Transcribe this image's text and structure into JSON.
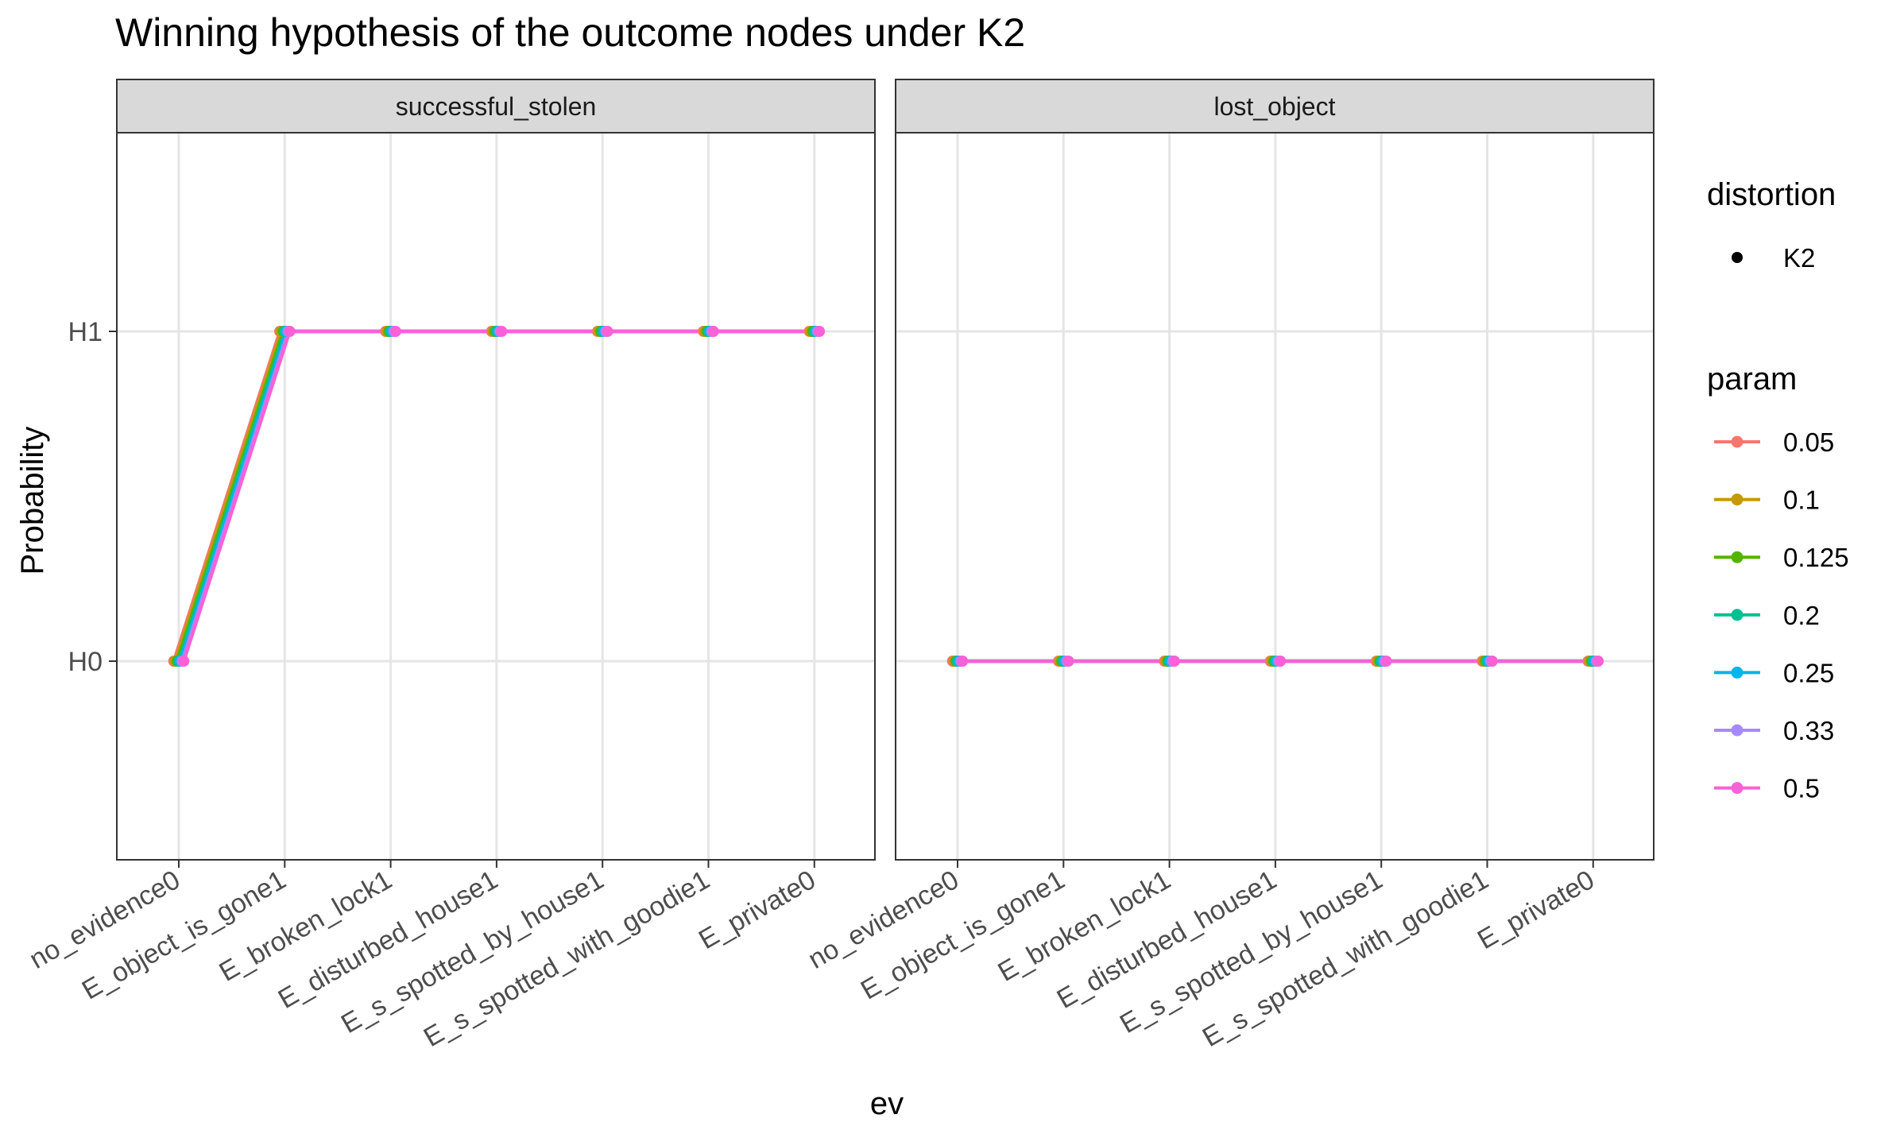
{
  "chart_data": {
    "type": "line",
    "title": "Winning hypothesis of the outcome nodes under K2",
    "xlabel": "ev",
    "ylabel": "Probability",
    "x": [
      "no_evidence0",
      "E_object_is_gone1",
      "E_broken_lock1",
      "E_disturbed_house1",
      "E_s_spotted_by_house1",
      "E_s_spotted_with_goodie1",
      "E_private0"
    ],
    "y_categories": [
      "H0",
      "H1"
    ],
    "grid": true,
    "legend_position": "right",
    "facets": [
      {
        "label": "successful_stolen",
        "series": [
          {
            "name": "0.05",
            "values": [
              "H0",
              "H1",
              "H1",
              "H1",
              "H1",
              "H1",
              "H1"
            ]
          },
          {
            "name": "0.1",
            "values": [
              "H0",
              "H1",
              "H1",
              "H1",
              "H1",
              "H1",
              "H1"
            ]
          },
          {
            "name": "0.125",
            "values": [
              "H0",
              "H1",
              "H1",
              "H1",
              "H1",
              "H1",
              "H1"
            ]
          },
          {
            "name": "0.2",
            "values": [
              "H0",
              "H1",
              "H1",
              "H1",
              "H1",
              "H1",
              "H1"
            ]
          },
          {
            "name": "0.25",
            "values": [
              "H0",
              "H1",
              "H1",
              "H1",
              "H1",
              "H1",
              "H1"
            ]
          },
          {
            "name": "0.33",
            "values": [
              "H0",
              "H1",
              "H1",
              "H1",
              "H1",
              "H1",
              "H1"
            ]
          },
          {
            "name": "0.5",
            "values": [
              "H0",
              "H1",
              "H1",
              "H1",
              "H1",
              "H1",
              "H1"
            ]
          }
        ]
      },
      {
        "label": "lost_object",
        "series": [
          {
            "name": "0.05",
            "values": [
              "H0",
              "H0",
              "H0",
              "H0",
              "H0",
              "H0",
              "H0"
            ]
          },
          {
            "name": "0.1",
            "values": [
              "H0",
              "H0",
              "H0",
              "H0",
              "H0",
              "H0",
              "H0"
            ]
          },
          {
            "name": "0.125",
            "values": [
              "H0",
              "H0",
              "H0",
              "H0",
              "H0",
              "H0",
              "H0"
            ]
          },
          {
            "name": "0.2",
            "values": [
              "H0",
              "H0",
              "H0",
              "H0",
              "H0",
              "H0",
              "H0"
            ]
          },
          {
            "name": "0.25",
            "values": [
              "H0",
              "H0",
              "H0",
              "H0",
              "H0",
              "H0",
              "H0"
            ]
          },
          {
            "name": "0.33",
            "values": [
              "H0",
              "H0",
              "H0",
              "H0",
              "H0",
              "H0",
              "H0"
            ]
          },
          {
            "name": "0.5",
            "values": [
              "H0",
              "H0",
              "H0",
              "H0",
              "H0",
              "H0",
              "H0"
            ]
          }
        ]
      }
    ],
    "legend": {
      "distortion": {
        "title": "distortion",
        "items": [
          "K2"
        ]
      },
      "param": {
        "title": "param",
        "items": [
          "0.05",
          "0.1",
          "0.125",
          "0.2",
          "0.25",
          "0.33",
          "0.5"
        ],
        "colors": [
          "#F8766D",
          "#C49A00",
          "#53B400",
          "#00C094",
          "#00B6EB",
          "#A58AFF",
          "#FB61D7"
        ]
      }
    }
  }
}
